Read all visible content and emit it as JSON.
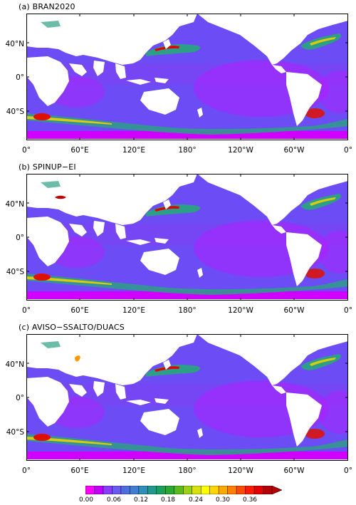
{
  "panels": [
    {
      "title": "(a) BRAN2020"
    },
    {
      "title": "(b) SPINUP−EI"
    },
    {
      "title": "(c) AVISO−SSALTO/DUACS"
    }
  ],
  "axes": {
    "lon_ticks": [
      "0°",
      "60°E",
      "120°E",
      "180°",
      "120°W",
      "60°W",
      "0°"
    ],
    "lat_ticks": [
      "40°N",
      "0°",
      "40°S"
    ]
  },
  "colorbar": {
    "labels": [
      "0.00",
      "0.06",
      "0.12",
      "0.18",
      "0.24",
      "0.30",
      "0.36"
    ],
    "colors": [
      "#ff00ff",
      "#c000ff",
      "#8a3cff",
      "#6a5cf0",
      "#4f6ee0",
      "#3d7fd0",
      "#2e8fb8",
      "#1f9a8a",
      "#1aa05a",
      "#2aa830",
      "#5cbb1a",
      "#9ad015",
      "#d8e010",
      "#ffff00",
      "#ffd700",
      "#ffaa00",
      "#ff7f00",
      "#ff4a00",
      "#ff1a00",
      "#e00000",
      "#b00000"
    ]
  },
  "map_colors": {
    "land": "#ffffff",
    "ocean_base": "#6c4cf5",
    "low": "#c800ff",
    "mid": "#2fa37a",
    "high": "#e8d400",
    "peak": "#e00000"
  }
}
